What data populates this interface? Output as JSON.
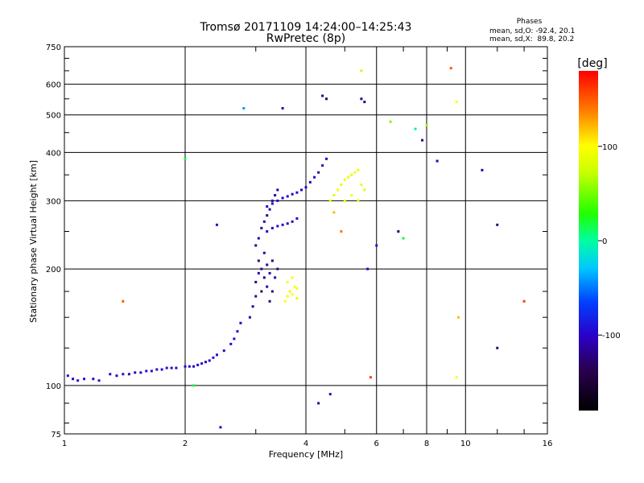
{
  "title": {
    "line1": "Tromsø 20171109 14:24:00–14:25:43",
    "line2": "RwPretec (8p)"
  },
  "stats": {
    "heading": "Phases",
    "o_line": "mean, sd,O: -92.4, 20.1",
    "x_line": "mean, sd,X:  89.8, 20.2"
  },
  "chart_data": {
    "type": "scatter",
    "xlabel": "Frequency [MHz]",
    "ylabel": "Stationary phase Virtual Height [km]",
    "x_scale": "log",
    "y_scale": "log",
    "xlim": [
      1,
      16
    ],
    "ylim": [
      75,
      750
    ],
    "x_ticks": [
      {
        "v": 1,
        "label": "1"
      },
      {
        "v": 2,
        "label": "2"
      },
      {
        "v": 4,
        "label": "4"
      },
      {
        "v": 6,
        "label": "6"
      },
      {
        "v": 8,
        "label": "8"
      },
      {
        "v": 10,
        "label": "10"
      },
      {
        "v": 16,
        "label": "16"
      }
    ],
    "y_ticks": [
      {
        "v": 75,
        "label": "75"
      },
      {
        "v": 100,
        "label": "100"
      },
      {
        "v": 200,
        "label": "200"
      },
      {
        "v": 300,
        "label": "300"
      },
      {
        "v": 400,
        "label": "400"
      },
      {
        "v": 500,
        "label": "500"
      },
      {
        "v": 600,
        "label": "600"
      },
      {
        "v": 750,
        "label": "750"
      }
    ],
    "grid": true,
    "colorbar": {
      "label": "[deg]",
      "range": [
        -180,
        180
      ],
      "ticks": [
        {
          "v": 100,
          "label": "100"
        },
        {
          "v": 0,
          "label": "0"
        },
        {
          "v": -100,
          "label": "-100"
        }
      ]
    },
    "series": [
      {
        "points": [
          [
            1.02,
            106,
            -95
          ],
          [
            1.05,
            104,
            -100
          ],
          [
            1.08,
            103,
            -90
          ],
          [
            1.12,
            104,
            -92
          ],
          [
            1.18,
            104,
            -98
          ],
          [
            1.22,
            103,
            -90
          ],
          [
            1.3,
            107,
            -95
          ],
          [
            1.35,
            106,
            -100
          ],
          [
            1.4,
            107,
            -92
          ],
          [
            1.45,
            107,
            -98
          ],
          [
            1.5,
            108,
            -95
          ],
          [
            1.55,
            108,
            -100
          ],
          [
            1.6,
            109,
            -92
          ],
          [
            1.65,
            109,
            -95
          ],
          [
            1.7,
            110,
            -98
          ],
          [
            1.75,
            110,
            -90
          ],
          [
            1.8,
            111,
            -95
          ],
          [
            1.85,
            111,
            -100
          ],
          [
            1.9,
            111,
            -92
          ],
          [
            2.0,
            112,
            -95
          ],
          [
            2.05,
            112,
            -90
          ],
          [
            2.1,
            112,
            -98
          ],
          [
            2.15,
            113,
            -95
          ],
          [
            2.2,
            114,
            -92
          ],
          [
            2.25,
            115,
            -100
          ],
          [
            2.3,
            116,
            -95
          ],
          [
            2.35,
            118,
            -90
          ],
          [
            2.4,
            120,
            -98
          ],
          [
            2.5,
            123,
            -95
          ],
          [
            2.6,
            128,
            -100
          ],
          [
            2.65,
            132,
            -92
          ],
          [
            2.7,
            138,
            -95
          ],
          [
            2.75,
            145,
            -98
          ]
        ]
      },
      {
        "points": [
          [
            2.9,
            150,
            -110
          ],
          [
            2.95,
            160,
            -120
          ],
          [
            3.0,
            170,
            -115
          ],
          [
            3.0,
            185,
            -125
          ],
          [
            3.05,
            195,
            -110
          ],
          [
            3.05,
            210,
            -120
          ],
          [
            3.1,
            175,
            -130
          ],
          [
            3.1,
            200,
            -115
          ],
          [
            3.15,
            190,
            -125
          ],
          [
            3.15,
            220,
            -110
          ],
          [
            3.2,
            180,
            -120
          ],
          [
            3.2,
            205,
            -115
          ],
          [
            3.25,
            165,
            -125
          ],
          [
            3.25,
            195,
            -110
          ],
          [
            3.3,
            175,
            -120
          ],
          [
            3.3,
            210,
            -130
          ],
          [
            3.35,
            190,
            -115
          ],
          [
            3.4,
            200,
            -110
          ],
          [
            3.0,
            230,
            -120
          ],
          [
            3.05,
            240,
            -115
          ],
          [
            3.1,
            255,
            -125
          ],
          [
            3.15,
            265,
            -110
          ],
          [
            3.2,
            275,
            -120
          ],
          [
            3.25,
            285,
            -115
          ],
          [
            3.3,
            300,
            -110
          ],
          [
            3.35,
            310,
            -120
          ],
          [
            3.4,
            320,
            -115
          ]
        ]
      },
      {
        "points": [
          [
            3.2,
            250,
            -100
          ],
          [
            3.3,
            255,
            -105
          ],
          [
            3.4,
            258,
            -98
          ],
          [
            3.5,
            260,
            -102
          ],
          [
            3.6,
            262,
            -100
          ],
          [
            3.7,
            265,
            -104
          ],
          [
            3.8,
            270,
            -98
          ],
          [
            3.2,
            290,
            -100
          ],
          [
            3.3,
            295,
            -104
          ],
          [
            3.4,
            300,
            -98
          ],
          [
            3.5,
            305,
            -102
          ],
          [
            3.6,
            308,
            -100
          ],
          [
            3.7,
            312,
            -105
          ],
          [
            3.8,
            315,
            -98
          ],
          [
            3.9,
            320,
            -102
          ],
          [
            4.0,
            325,
            -100
          ],
          [
            4.1,
            335,
            -104
          ],
          [
            4.2,
            345,
            -98
          ],
          [
            4.3,
            355,
            -102
          ],
          [
            4.4,
            370,
            -100
          ],
          [
            4.5,
            385,
            -104
          ]
        ]
      },
      {
        "points": [
          [
            3.55,
            165,
            100
          ],
          [
            3.6,
            170,
            95
          ],
          [
            3.65,
            175,
            105
          ],
          [
            3.7,
            172,
            100
          ],
          [
            3.75,
            180,
            98
          ],
          [
            3.8,
            178,
            102
          ],
          [
            3.6,
            185,
            100
          ],
          [
            3.7,
            190,
            95
          ],
          [
            3.8,
            168,
            105
          ]
        ]
      },
      {
        "points": [
          [
            4.6,
            300,
            90
          ],
          [
            4.7,
            310,
            85
          ],
          [
            4.8,
            320,
            95
          ],
          [
            4.9,
            330,
            88
          ],
          [
            5.0,
            340,
            92
          ],
          [
            5.1,
            345,
            90
          ],
          [
            5.2,
            350,
            85
          ],
          [
            5.3,
            355,
            95
          ],
          [
            5.4,
            360,
            90
          ],
          [
            5.5,
            330,
            92
          ],
          [
            5.6,
            320,
            88
          ],
          [
            5.0,
            300,
            90
          ],
          [
            5.2,
            310,
            95
          ],
          [
            5.4,
            300,
            85
          ]
        ]
      },
      {
        "points": [
          [
            2.8,
            520,
            -40
          ],
          [
            3.5,
            520,
            -110
          ],
          [
            4.4,
            560,
            -120
          ],
          [
            4.5,
            550,
            -130
          ],
          [
            5.5,
            550,
            -120
          ],
          [
            5.6,
            540,
            -125
          ],
          [
            5.5,
            650,
            70
          ],
          [
            9.2,
            660,
            150
          ],
          [
            9.5,
            540,
            100
          ],
          [
            6.5,
            480,
            50
          ],
          [
            7.5,
            460,
            -10
          ],
          [
            8.0,
            470,
            60
          ],
          [
            2.0,
            385,
            20
          ],
          [
            1.4,
            165,
            150
          ],
          [
            2.4,
            260,
            -100
          ],
          [
            4.3,
            90,
            -110
          ],
          [
            4.6,
            95,
            -100
          ],
          [
            5.8,
            105,
            160
          ],
          [
            9.5,
            105,
            100
          ],
          [
            9.6,
            150,
            120
          ],
          [
            11.0,
            360,
            -110
          ],
          [
            12.0,
            260,
            -120
          ],
          [
            14.0,
            165,
            160
          ],
          [
            12.0,
            125,
            -120
          ],
          [
            6.8,
            250,
            -130
          ],
          [
            7.0,
            240,
            20
          ],
          [
            6.0,
            230,
            -90
          ],
          [
            5.7,
            200,
            -100
          ],
          [
            4.9,
            250,
            140
          ],
          [
            4.7,
            280,
            120
          ],
          [
            8.5,
            380,
            -110
          ],
          [
            7.8,
            430,
            -120
          ],
          [
            2.1,
            100,
            20
          ],
          [
            2.45,
            78,
            -100
          ]
        ]
      }
    ]
  }
}
